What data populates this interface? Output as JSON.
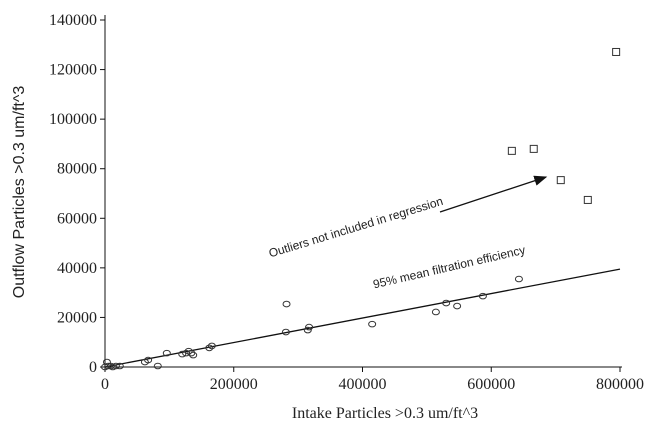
{
  "chart_data": {
    "type": "scatter",
    "xlabel": "Intake Particles >0.3 um/ft^3",
    "ylabel": "Outflow Particles >0.3 um/ft^3",
    "annotations": [
      "Outliers not included in regression",
      "95% mean filtration efficiency"
    ],
    "xlim": [
      0,
      800000
    ],
    "ylim": [
      0,
      140000
    ],
    "xticks": [
      0,
      200000,
      400000,
      600000,
      800000
    ],
    "yticks": [
      0,
      20000,
      40000,
      60000,
      80000,
      100000,
      120000,
      140000
    ],
    "grid": false,
    "color": "#333333",
    "series": [
      {
        "marker": "circle",
        "x": [
          3000,
          0,
          5000,
          9000,
          12000,
          17000,
          23000,
          62000,
          67000,
          82000,
          96000,
          120000,
          126000,
          130000,
          134000,
          137000,
          162000,
          166000,
          281000,
          282000,
          315000,
          317000,
          415000,
          514000,
          530000,
          547000,
          587000,
          643000
        ],
        "values": [
          2000,
          0,
          400,
          400,
          0,
          400,
          400,
          2000,
          2800,
          400,
          5600,
          5200,
          5600,
          6400,
          5600,
          4800,
          7700,
          8500,
          14100,
          25400,
          14900,
          16100,
          17300,
          22200,
          25800,
          24600,
          28600,
          35500
        ]
      },
      {
        "marker": "square",
        "x": [
          632000,
          666000,
          708000,
          750000,
          794000
        ],
        "values": [
          87200,
          88000,
          75400,
          67400,
          127100
        ]
      }
    ],
    "trend_line": {
      "x": [
        0,
        800000
      ],
      "values": [
        0,
        39500
      ]
    }
  }
}
